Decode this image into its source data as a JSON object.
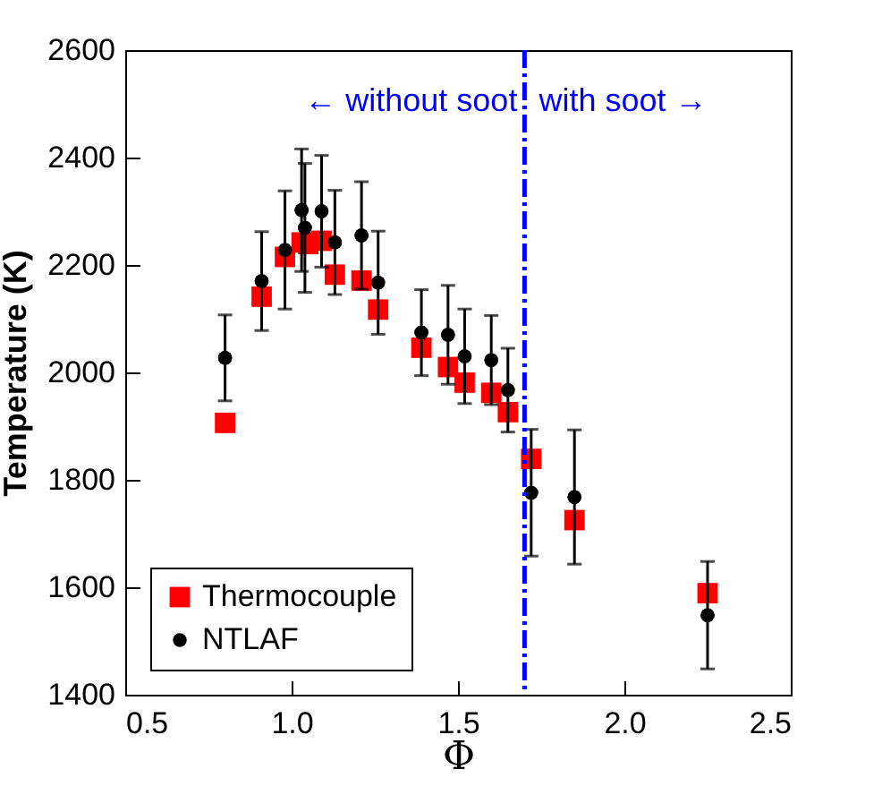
{
  "chart_data": {
    "type": "scatter",
    "xlabel": "Φ",
    "ylabel": "Temperature (K)",
    "xlim": [
      0.5,
      2.5
    ],
    "xticks": [
      {
        "value": 0.5,
        "label": "0.5"
      },
      {
        "value": 1,
        "label": "1.0"
      },
      {
        "value": 1.5,
        "label": "1.5"
      },
      {
        "value": 2,
        "label": "2.0"
      },
      {
        "value": 2.5,
        "label": "2.5"
      }
    ],
    "ylim": [
      1400,
      2600
    ],
    "yticks": [
      1400,
      1600,
      1800,
      2000,
      2200,
      2400,
      2600
    ],
    "grid": false,
    "legend": "bottom left",
    "series": [
      {
        "name": "Thermocouple",
        "color": "#ff0000",
        "marker": "square",
        "x": [
          0.8,
          0.91,
          0.98,
          1.03,
          1.05,
          1.09,
          1.13,
          1.21,
          1.26,
          1.39,
          1.47,
          1.52,
          1.6,
          1.65,
          1.72,
          1.85,
          2.25
        ],
        "values": [
          1906,
          2141,
          2215,
          2242,
          2239,
          2245,
          2182,
          2171,
          2117,
          2046,
          2010,
          1981,
          1962,
          1926,
          1839,
          1725,
          1589
        ]
      },
      {
        "name": "NTLAF",
        "color": "#000000",
        "marker": "circle",
        "x": [
          0.8,
          0.91,
          0.98,
          1.03,
          1.04,
          1.09,
          1.13,
          1.21,
          1.26,
          1.39,
          1.47,
          1.52,
          1.6,
          1.65,
          1.72,
          1.85,
          2.25
        ],
        "values": [
          2027,
          2170,
          2228,
          2302,
          2269,
          2300,
          2242,
          2255,
          2167,
          2074,
          2070,
          2030,
          2023,
          1967,
          1776,
          1768,
          1548
        ],
        "errors": [
          80,
          92,
          110,
          114,
          120,
          104,
          97,
          100,
          96,
          80,
          92,
          88,
          83,
          78,
          118,
          125,
          100
        ]
      }
    ],
    "ref_lines": [
      {
        "axis": "x",
        "value": 1.7,
        "color": "#0000ff",
        "line_style": "dashdot"
      }
    ],
    "annotations": [
      "← without soot",
      "with soot →"
    ]
  }
}
